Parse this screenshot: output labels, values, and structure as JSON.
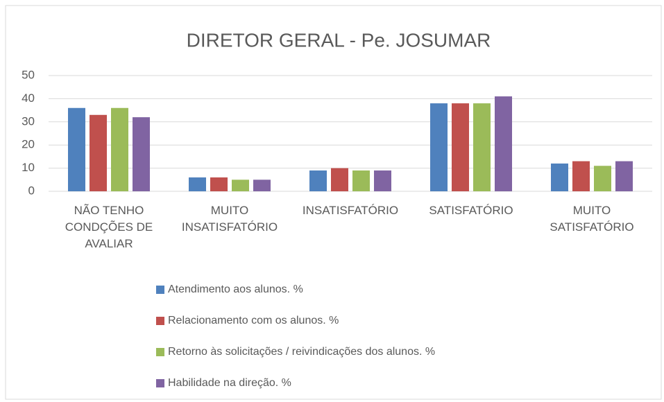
{
  "chart_data": {
    "type": "bar",
    "title": "DIRETOR GERAL - Pe. JOSUMAR",
    "categories": [
      "NÃO TENHO CONDÇÕES DE AVALIAR",
      "MUITO INSATISFATÓRIO",
      "INSATISFATÓRIO",
      "SATISFATÓRIO",
      "MUITO SATISFATÓRIO"
    ],
    "series": [
      {
        "name": "Atendimento aos alunos. %",
        "color": "#4f81bd",
        "values": [
          36,
          6,
          9,
          38,
          12
        ]
      },
      {
        "name": "Relacionamento com os alunos. %",
        "color": "#c0504d",
        "values": [
          33,
          6,
          10,
          38,
          13
        ]
      },
      {
        "name": "Retorno às solicitações / reivindicações dos alunos. %",
        "color": "#9bbb59",
        "values": [
          36,
          5,
          9,
          38,
          11
        ]
      },
      {
        "name": "Habilidade na direção. %",
        "color": "#8064a2",
        "values": [
          32,
          5,
          9,
          41,
          13
        ]
      }
    ],
    "ylim": [
      0,
      50
    ],
    "yticks": [
      0,
      10,
      20,
      30,
      40,
      50
    ],
    "grid": true,
    "legend": "bottom"
  }
}
